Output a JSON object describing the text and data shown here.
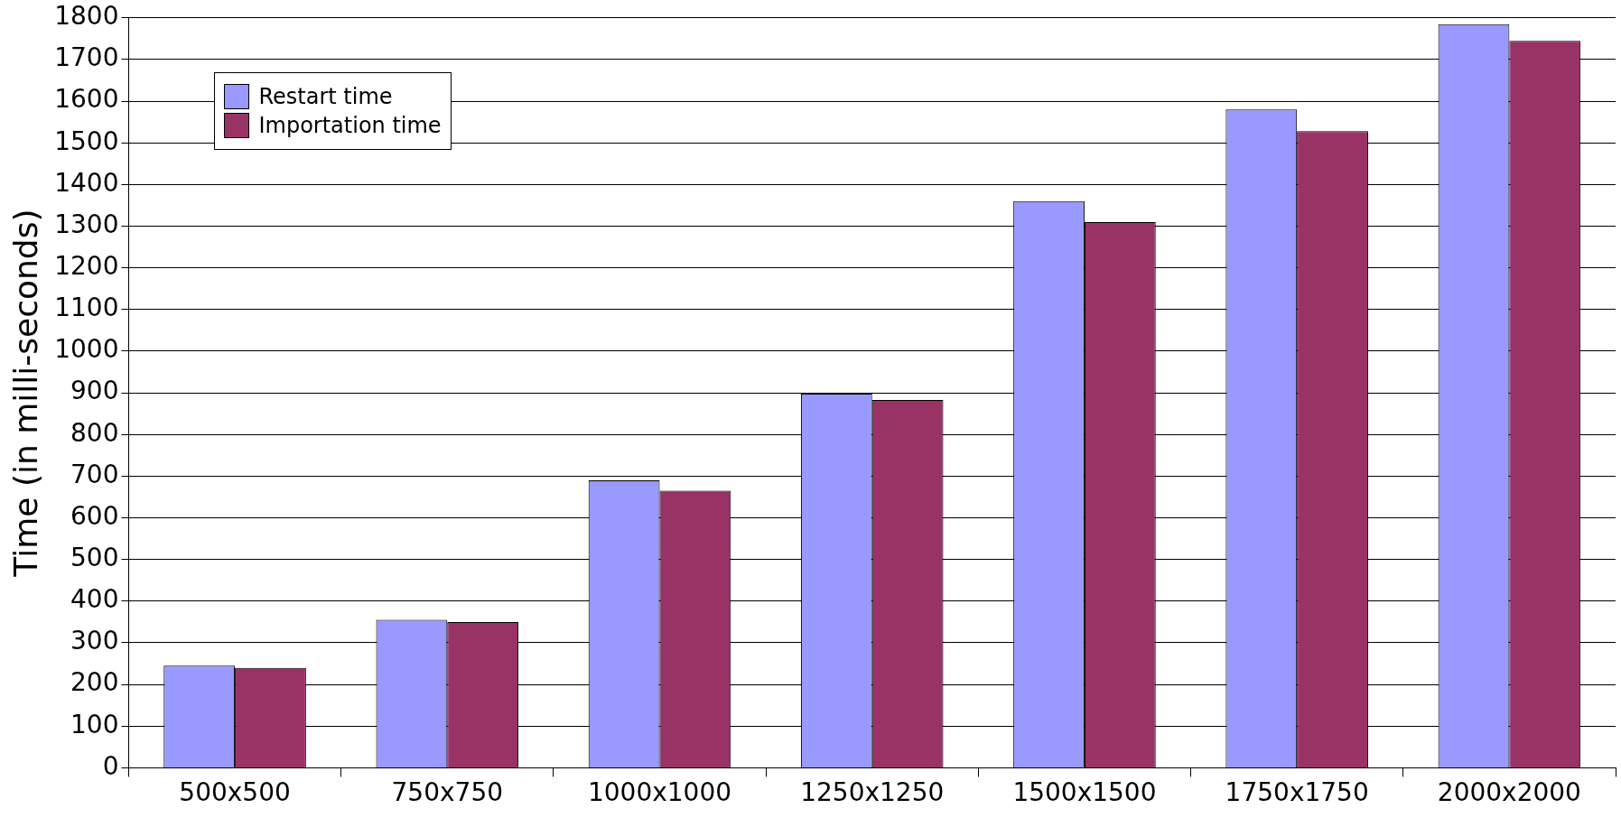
{
  "chart_data": {
    "type": "bar",
    "ylabel": "Time (in milli-seconds)",
    "categories": [
      "500x500",
      "750x750",
      "1000x1000",
      "1250x1250",
      "1500x1500",
      "1750x1750",
      "2000x2000"
    ],
    "series": [
      {
        "name": "Restart time",
        "color": "#9999ff",
        "values": [
          245,
          355,
          690,
          898,
          1360,
          1580,
          1785
        ]
      },
      {
        "name": "Importation time",
        "color": "#993366",
        "values": [
          240,
          350,
          665,
          883,
          1310,
          1528,
          1745
        ]
      }
    ],
    "ylim": [
      0,
      1800
    ],
    "yticks": [
      0,
      100,
      200,
      300,
      400,
      500,
      600,
      700,
      800,
      900,
      1000,
      1100,
      1200,
      1300,
      1400,
      1500,
      1600,
      1700,
      1800
    ],
    "grid": "y",
    "legend": "top left"
  }
}
